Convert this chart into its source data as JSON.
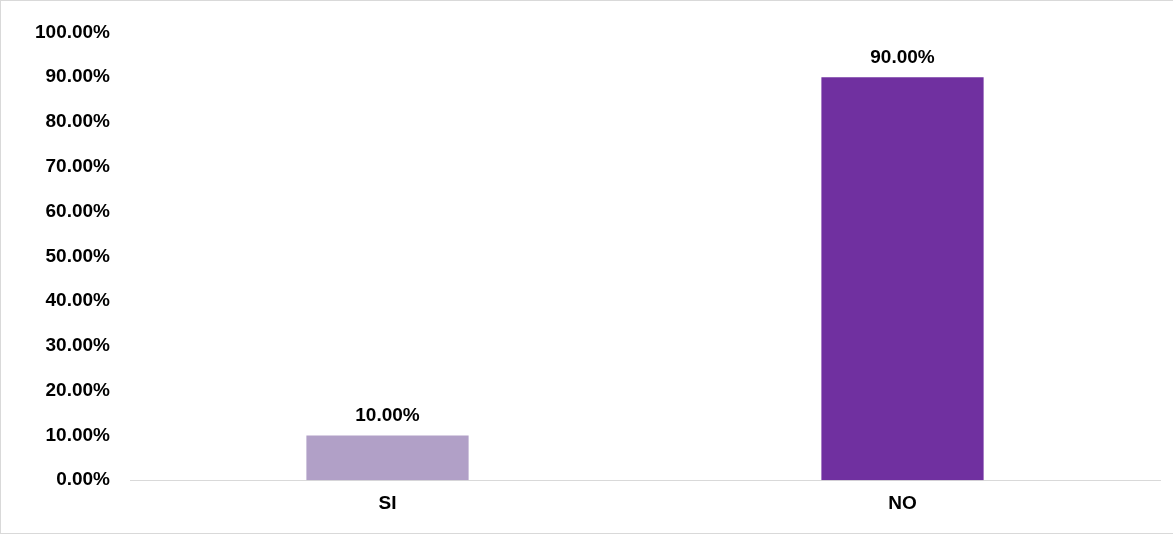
{
  "chart_data": {
    "type": "bar",
    "categories": [
      "SI",
      "NO"
    ],
    "values": [
      10,
      90
    ],
    "colors": [
      "#b1a0c7",
      "#7030a0"
    ],
    "value_labels": [
      "10.00%",
      "90.00%"
    ],
    "ylim": [
      0,
      100
    ],
    "yticks": [
      {
        "value": 0,
        "label": "0.00%"
      },
      {
        "value": 10,
        "label": "10.00%"
      },
      {
        "value": 20,
        "label": "20.00%"
      },
      {
        "value": 30,
        "label": "30.00%"
      },
      {
        "value": 40,
        "label": "40.00%"
      },
      {
        "value": 50,
        "label": "50.00%"
      },
      {
        "value": 60,
        "label": "60.00%"
      },
      {
        "value": 70,
        "label": "70.00%"
      },
      {
        "value": 80,
        "label": "80.00%"
      },
      {
        "value": 90,
        "label": "90.00%"
      },
      {
        "value": 100,
        "label": "100.00%"
      }
    ],
    "grid": false,
    "legend": false
  }
}
